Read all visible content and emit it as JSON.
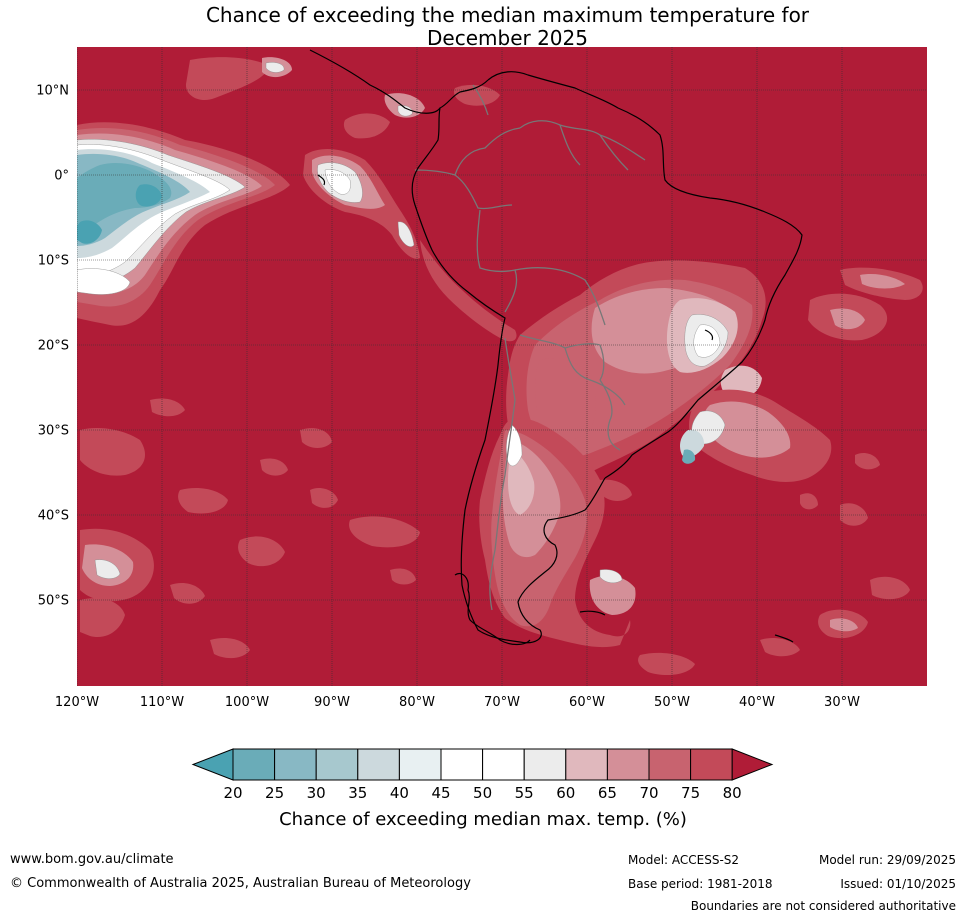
{
  "title": {
    "line1": "Chance of exceeding the median maximum temperature for",
    "line2": "December 2025"
  },
  "map": {
    "lat_labels": [
      "10°N",
      "0°",
      "10°S",
      "20°S",
      "30°S",
      "40°S",
      "50°S"
    ],
    "lon_labels": [
      "120°W",
      "110°W",
      "100°W",
      "90°W",
      "80°W",
      "70°W",
      "60°W",
      "50°W",
      "40°W",
      "30°W"
    ],
    "colors": {
      "c80": "#b01c37",
      "c75": "#c34a59",
      "c70": "#c8636f",
      "c65": "#d48f98",
      "c60": "#e0b8bd",
      "c55": "#ececec",
      "c50": "#ffffff",
      "c45": "#ffffff",
      "c40": "#e8f0f2",
      "c35": "#ccd9dd",
      "c30": "#a7c8ce",
      "c25": "#88b8c4",
      "c20": "#6aacb8",
      "c15": "#4aa2b2",
      "border": "#777777",
      "coast": "#000000"
    }
  },
  "colorbar": {
    "ticks": [
      "20",
      "25",
      "30",
      "35",
      "40",
      "45",
      "50",
      "55",
      "60",
      "65",
      "70",
      "75",
      "80"
    ],
    "colors": [
      "#6aacb8",
      "#88b8c4",
      "#a7c8ce",
      "#ccd9dd",
      "#e8f0f2",
      "#ffffff",
      "#ffffff",
      "#ececec",
      "#e0b8bd",
      "#d48f98",
      "#c8636f",
      "#c34a59"
    ],
    "low_color": "#4aa2b2",
    "high_color": "#b01c37",
    "title": "Chance of exceeding median max. temp. (%)"
  },
  "footer": {
    "website": "www.bom.gov.au/climate",
    "copyright": "© Commonwealth of Australia 2025, Australian Bureau of Meteorology",
    "model": "Model: ACCESS-S2",
    "base_period": "Base period: 1981-2018",
    "model_run": "Model run: 29/09/2025",
    "issued": "Issued: 01/10/2025",
    "disclaimer": "Boundaries are not considered authoritative"
  }
}
